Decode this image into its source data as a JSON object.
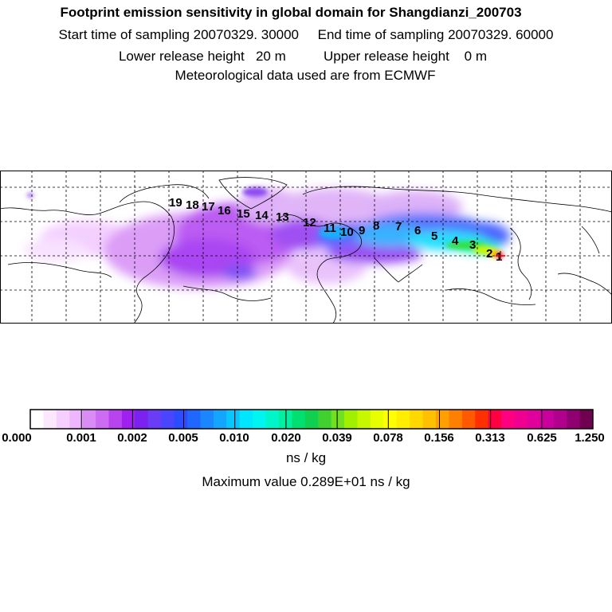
{
  "header": {
    "title": "Footprint emission sensitivity in global domain for Shangdianzi_200703",
    "sampling": "Start time of sampling 20070329. 30000     End time of sampling 20070329. 60000",
    "release": "Lower release height   20 m          Upper release height    0 m",
    "met": "Meteorological data used are from ECMWF"
  },
  "map": {
    "region": "global",
    "station": "Shangdianzi",
    "trajectory_labels": [
      "1",
      "2",
      "3",
      "4",
      "5",
      "6",
      "7",
      "8",
      "9",
      "10",
      "11",
      "12",
      "13",
      "14",
      "15",
      "16",
      "17",
      "18",
      "19"
    ]
  },
  "legend": {
    "ticks": [
      "0.000",
      "0.001",
      "0.002",
      "0.005",
      "0.010",
      "0.020",
      "0.039",
      "0.078",
      "0.156",
      "0.313",
      "0.625",
      "1.250"
    ],
    "colors": [
      "#ffffff",
      "#fbe8ff",
      "#f5d0ff",
      "#eeb6ff",
      "#d98cf5",
      "#cc6cf3",
      "#b844f0",
      "#a020f0",
      "#7b22f0",
      "#6a3cf5",
      "#4a45ff",
      "#2c4cff",
      "#1f67ff",
      "#1a86ff",
      "#14a6ff",
      "#0ac6ff",
      "#00e6ff",
      "#00f5f0",
      "#00f5c8",
      "#00f0a0",
      "#00e070",
      "#10d050",
      "#40d030",
      "#70e020",
      "#a0f000",
      "#c8f800",
      "#e8ff00",
      "#ffff00",
      "#ffee00",
      "#ffd800",
      "#ffc000",
      "#ffa000",
      "#ff8000",
      "#ff5a00",
      "#ff3000",
      "#ff0040",
      "#ff0080",
      "#f00090",
      "#e0009c",
      "#c8009c",
      "#b0008c",
      "#900070",
      "#700050"
    ],
    "units": "ns / kg",
    "max_text": "Maximum value  0.289E+01 ns / kg"
  }
}
